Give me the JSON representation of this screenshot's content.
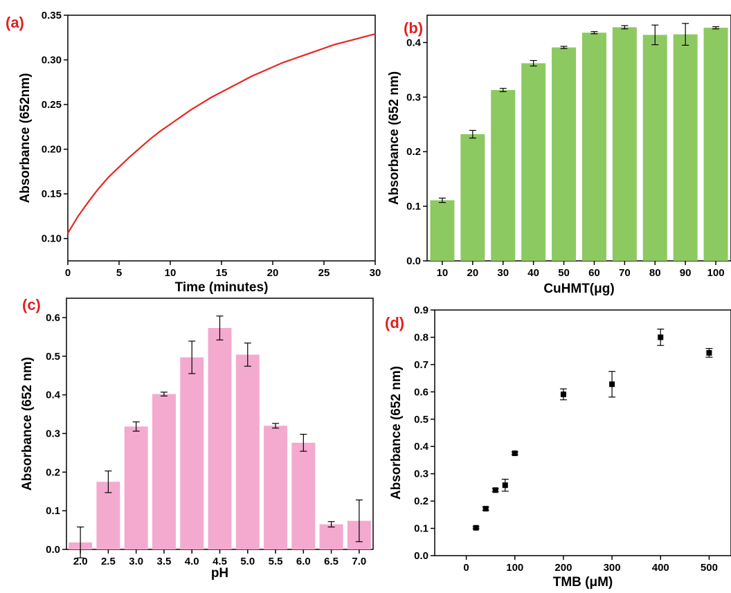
{
  "chart_data": [
    {
      "panel_label": "(a)",
      "type": "line",
      "xlabel": "Time (minutes)",
      "ylabel": "Absorbance (652nm)",
      "xlim": [
        0,
        30
      ],
      "ylim": [
        0.075,
        0.35
      ],
      "x_ticks": [
        "0",
        "5",
        "10",
        "15",
        "20",
        "25",
        "30"
      ],
      "y_ticks": [
        "0.10",
        "0.15",
        "0.20",
        "0.25",
        "0.30",
        "0.35"
      ],
      "color": "#e8261f",
      "series": [
        {
          "x": [
            0,
            1,
            2,
            3,
            4,
            5,
            6,
            7,
            8,
            9,
            10,
            11,
            12,
            13,
            14,
            15,
            16,
            17,
            18,
            19,
            20,
            21,
            22,
            23,
            24,
            25,
            26,
            27,
            28,
            29,
            30
          ],
          "values": [
            0.106,
            0.125,
            0.141,
            0.156,
            0.169,
            0.18,
            0.191,
            0.201,
            0.211,
            0.22,
            0.228,
            0.236,
            0.244,
            0.251,
            0.258,
            0.264,
            0.27,
            0.276,
            0.282,
            0.287,
            0.292,
            0.297,
            0.301,
            0.305,
            0.309,
            0.313,
            0.317,
            0.32,
            0.323,
            0.326,
            0.329
          ]
        }
      ]
    },
    {
      "panel_label": "(b)",
      "type": "bar",
      "xlabel": "CuHMT(μg)",
      "ylabel": "Absorbance (652 nm)",
      "ylim": [
        0,
        0.45
      ],
      "y_ticks": [
        "0.0",
        "0.1",
        "0.2",
        "0.3",
        "0.4"
      ],
      "color": "#8dc961",
      "categories": [
        "10",
        "20",
        "30",
        "40",
        "50",
        "60",
        "70",
        "80",
        "90",
        "100"
      ],
      "values": [
        0.111,
        0.232,
        0.313,
        0.362,
        0.391,
        0.418,
        0.428,
        0.414,
        0.415,
        0.427
      ],
      "errors": [
        0.004,
        0.007,
        0.003,
        0.005,
        0.002,
        0.002,
        0.003,
        0.018,
        0.02,
        0.002
      ]
    },
    {
      "panel_label": "(c)",
      "type": "bar",
      "xlabel": "pH",
      "ylabel": "Absorbance (652 nm)",
      "ylim": [
        0,
        0.65
      ],
      "y_ticks": [
        "0.0",
        "0.1",
        "0.2",
        "0.3",
        "0.4",
        "0.5",
        "0.6"
      ],
      "color": "#f4aacf",
      "categories": [
        "2.0",
        "2.5",
        "3.0",
        "3.5",
        "4.0",
        "4.5",
        "5.0",
        "5.5",
        "6.0",
        "6.5",
        "7.0"
      ],
      "values": [
        0.018,
        0.175,
        0.318,
        0.402,
        0.497,
        0.573,
        0.504,
        0.32,
        0.276,
        0.065,
        0.074
      ],
      "errors": [
        0.04,
        0.028,
        0.012,
        0.005,
        0.042,
        0.031,
        0.03,
        0.006,
        0.022,
        0.007,
        0.054
      ]
    },
    {
      "panel_label": "(d)",
      "type": "scatter",
      "xlabel": "TMB (μM)",
      "ylabel": "Absorbance (652 nm)",
      "xlim": [
        -65,
        545
      ],
      "ylim": [
        0,
        0.9
      ],
      "x_ticks": [
        "0",
        "100",
        "200",
        "300",
        "400",
        "500"
      ],
      "y_ticks": [
        "0.0",
        "0.1",
        "0.2",
        "0.3",
        "0.4",
        "0.5",
        "0.6",
        "0.7",
        "0.8",
        "0.9"
      ],
      "color": "#000000",
      "series": [
        {
          "x": [
            20,
            40,
            60,
            80,
            100,
            200,
            300,
            400,
            500
          ],
          "values": [
            0.102,
            0.172,
            0.24,
            0.258,
            0.375,
            0.591,
            0.628,
            0.8,
            0.743
          ],
          "errors": [
            0.004,
            0.006,
            0.006,
            0.022,
            0.005,
            0.02,
            0.047,
            0.03,
            0.016
          ]
        }
      ]
    }
  ]
}
